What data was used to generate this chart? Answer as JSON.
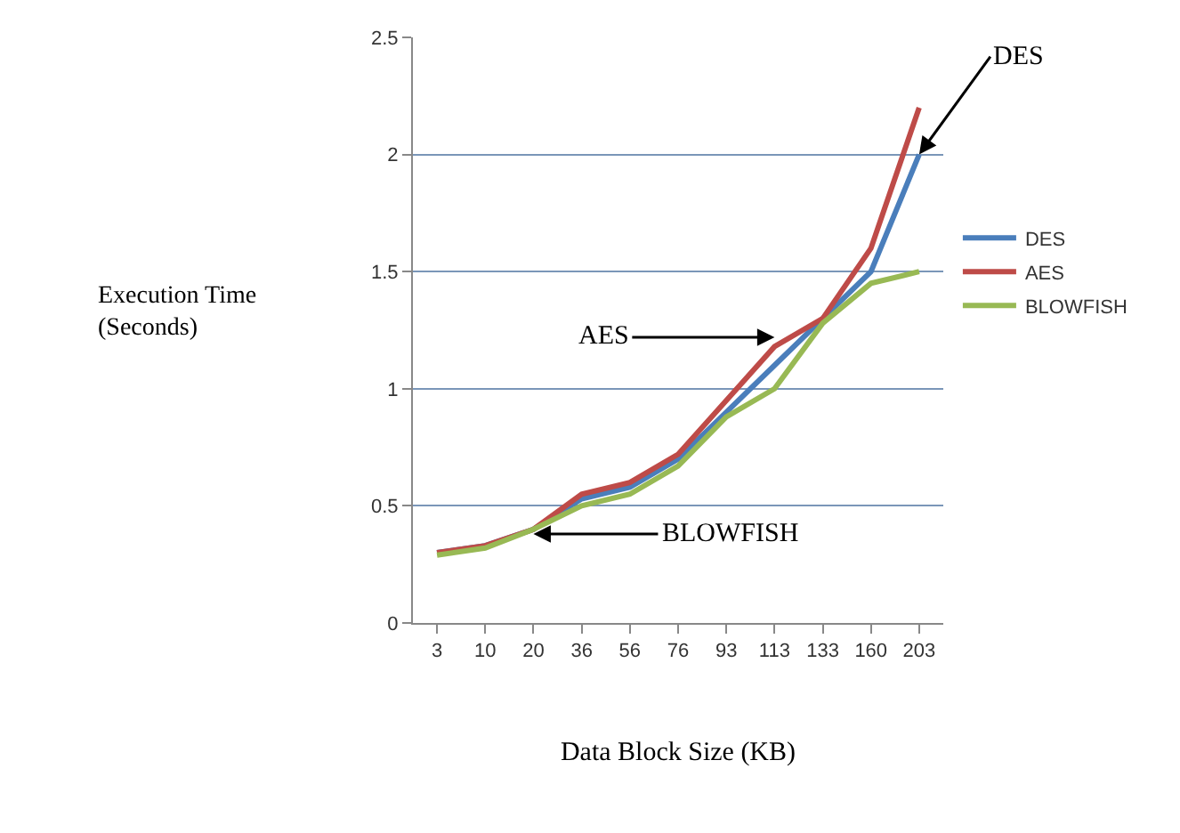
{
  "chart_data": {
    "type": "line",
    "categories": [
      "3",
      "10",
      "20",
      "36",
      "56",
      "76",
      "93",
      "113",
      "133",
      "160",
      "203"
    ],
    "series": [
      {
        "name": "DES",
        "color": "#4a7ebb",
        "values": [
          0.3,
          0.33,
          0.4,
          0.53,
          0.58,
          0.7,
          0.9,
          1.1,
          1.3,
          1.5,
          2.0
        ]
      },
      {
        "name": "AES",
        "color": "#be4b48",
        "values": [
          0.3,
          0.33,
          0.4,
          0.55,
          0.6,
          0.72,
          0.95,
          1.18,
          1.3,
          1.6,
          2.2
        ]
      },
      {
        "name": "BLOWFISH",
        "color": "#98b954",
        "values": [
          0.29,
          0.32,
          0.4,
          0.5,
          0.55,
          0.67,
          0.88,
          1.0,
          1.28,
          1.45,
          1.5
        ]
      }
    ],
    "xlabel": "Data Block Size (KB)",
    "ylabel": "Execution Time\n(Seconds)",
    "ylim": [
      0,
      2.5
    ],
    "yticks": [
      0,
      0.5,
      1,
      1.5,
      2,
      2.5
    ],
    "grid": "y",
    "legend": "right",
    "marker": "none",
    "line_style": "solid",
    "annotations": [
      {
        "text": "DES",
        "x": "203",
        "y": 2.0
      },
      {
        "text": "AES",
        "x": "113",
        "y": 1.22
      },
      {
        "text": "BLOWFISH",
        "x": "20",
        "y": 0.38
      }
    ]
  }
}
